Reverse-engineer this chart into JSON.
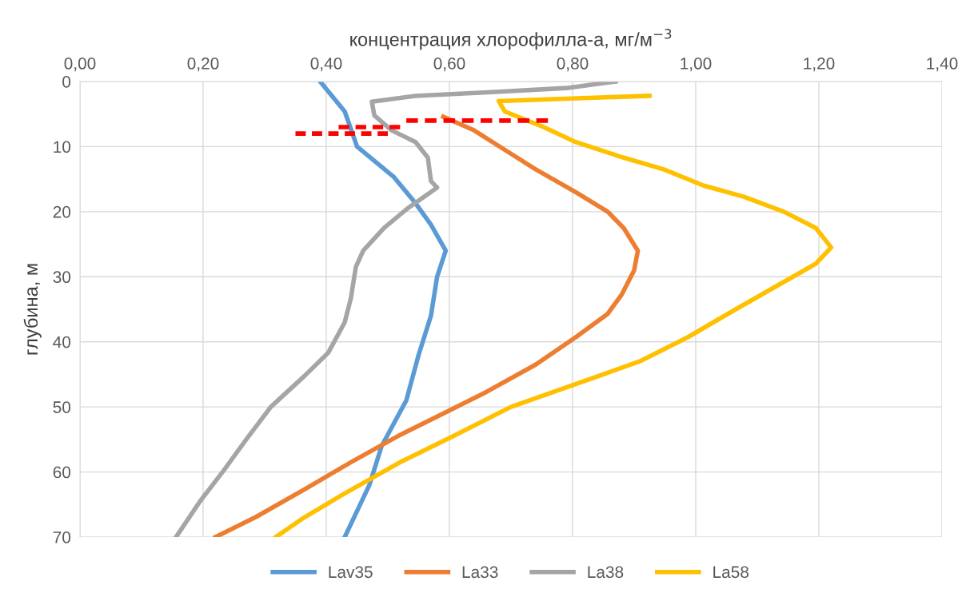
{
  "chart_data": {
    "type": "line",
    "xlabel": "концентрация хлорофилла-а, мг/м$^{−3}$",
    "ylabel": "глубина, м",
    "xlim": [
      0,
      1.4
    ],
    "xticks": [
      {
        "value": 0,
        "label": "0,00"
      },
      {
        "value": 0.2,
        "label": "0,20"
      },
      {
        "value": 0.4,
        "label": "0,40"
      },
      {
        "value": 0.6,
        "label": "0,60"
      },
      {
        "value": 0.8,
        "label": "0,80"
      },
      {
        "value": 1.0,
        "label": "1,00"
      },
      {
        "value": 1.2,
        "label": "1,20"
      },
      {
        "value": 1.4,
        "label": "1,40"
      }
    ],
    "ylim": [
      70,
      0
    ],
    "yticks": [
      0,
      10,
      20,
      30,
      40,
      50,
      60,
      70
    ],
    "grid": true,
    "legend": "bottom",
    "line_style": "solid",
    "series": [
      {
        "name": "Lav35",
        "color": "#5b9bd5",
        "x": [
          0.39,
          0.43,
          0.45,
          0.51,
          0.545,
          0.57,
          0.594,
          0.58,
          0.57,
          0.55,
          0.53,
          0.49,
          0.47,
          0.43
        ],
        "values": [
          0,
          4.6,
          10,
          14.7,
          18.7,
          22,
          26,
          30,
          36,
          42,
          49,
          56,
          62,
          70
        ]
      },
      {
        "name": "La33",
        "color": "#ed7d31",
        "x": [
          0.59,
          0.64,
          0.69,
          0.74,
          0.805,
          0.857,
          0.883,
          0.906,
          0.9,
          0.88,
          0.857,
          0.805,
          0.74,
          0.66,
          0.584,
          0.52,
          0.44,
          0.364,
          0.286,
          0.22
        ],
        "values": [
          5.4,
          7.5,
          10.5,
          13.5,
          17,
          20,
          22.5,
          26,
          29,
          32.7,
          35.7,
          39.3,
          43.5,
          47.7,
          51.3,
          54.3,
          58.5,
          62.7,
          66.9,
          70
        ]
      },
      {
        "name": "La38",
        "color": "#a5a5a5",
        "x": [
          0.87,
          0.79,
          0.675,
          0.545,
          0.474,
          0.478,
          0.506,
          0.545,
          0.565,
          0.57,
          0.58,
          0.532,
          0.494,
          0.46,
          0.448,
          0.44,
          0.43,
          0.403,
          0.364,
          0.31,
          0.27,
          0.234,
          0.195,
          0.156
        ],
        "values": [
          0,
          1,
          1.6,
          2.2,
          3.1,
          5.2,
          7.5,
          9.3,
          11.7,
          15.3,
          16.3,
          19.5,
          22.5,
          26,
          28.5,
          33.3,
          37,
          41.7,
          45.3,
          50,
          55,
          59.7,
          64.5,
          70
        ]
      },
      {
        "name": "La58",
        "color": "#ffc000",
        "x": [
          0.925,
          0.68,
          0.69,
          0.753,
          0.805,
          0.883,
          0.948,
          1.013,
          1.078,
          1.143,
          1.195,
          1.22,
          1.195,
          1.13,
          1.065,
          0.987,
          0.909,
          0.805,
          0.7,
          0.61,
          0.52,
          0.43,
          0.364,
          0.318
        ],
        "values": [
          2.2,
          3,
          4.6,
          7,
          9.3,
          11.7,
          13.5,
          16,
          17.7,
          20,
          22.5,
          25.5,
          28,
          31.5,
          35,
          39.3,
          43,
          46.5,
          50,
          54.3,
          58.5,
          63.3,
          67,
          70
        ]
      },
      {
        "color": "#ff0000",
        "line_style": "dashed",
        "x": [
          0.53,
          0.76
        ],
        "values": [
          6,
          6
        ]
      },
      {
        "color": "#ff0000",
        "line_style": "dashed",
        "x": [
          0.42,
          0.52
        ],
        "values": [
          7,
          7
        ]
      },
      {
        "color": "#ff0000",
        "line_style": "dashed",
        "x": [
          0.35,
          0.5
        ],
        "values": [
          8,
          8
        ]
      }
    ]
  }
}
